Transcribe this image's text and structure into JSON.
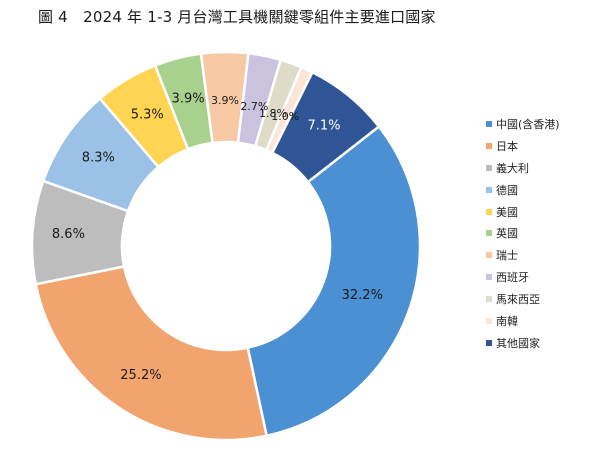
{
  "title": "圖 4　2024 年 1-3 月台灣工具機關鍵零組件主要進口國家",
  "chart_data": {
    "type": "pie",
    "donut": true,
    "title": "圖 4　2024 年 1-3 月台灣工具機關鍵零組件主要進口國家",
    "legend_position": "right",
    "categories": [
      "中國(含香港)",
      "日本",
      "義大利",
      "德國",
      "美國",
      "英國",
      "瑞士",
      "西班牙",
      "馬來西亞",
      "南韓",
      "其他國家"
    ],
    "values": [
      32.2,
      25.2,
      8.6,
      8.3,
      5.3,
      3.9,
      3.9,
      2.7,
      1.8,
      1.0,
      7.1
    ],
    "labels": [
      "32.2%",
      "25.2%",
      "8.6%",
      "8.3%",
      "5.3%",
      "3.9%",
      "3.9%",
      "2.7%",
      "1.8%",
      "1.0%",
      "7.1%"
    ],
    "colors": [
      "#4a90d2",
      "#f2a46e",
      "#bdbdbd",
      "#9bc2e6",
      "#ffd452",
      "#a9d18e",
      "#f6c9a4",
      "#c9c3e0",
      "#dedcc8",
      "#fbe5d6",
      "#2f5597"
    ],
    "label_colors": [
      "#1a1a1a",
      "#1a1a1a",
      "#1a1a1a",
      "#1a1a1a",
      "#1a1a1a",
      "#1a1a1a",
      "#1a1a1a",
      "#1a1a1a",
      "#1a1a1a",
      "#1a1a1a",
      "#ffffff"
    ]
  }
}
